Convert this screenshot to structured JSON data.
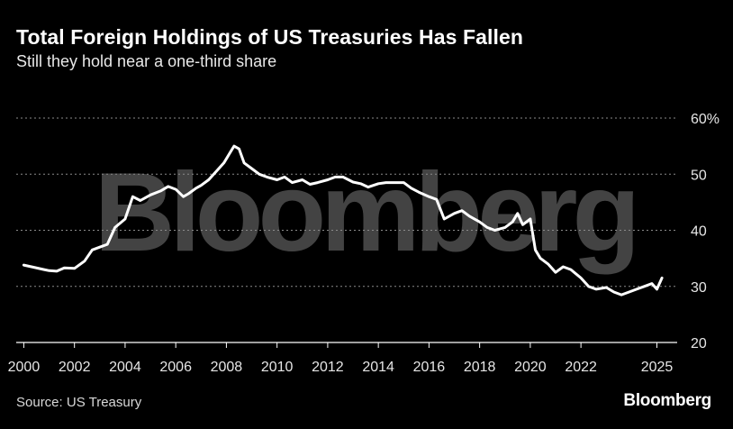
{
  "header": {
    "title": "Total Foreign Holdings of US Treasuries Has Fallen",
    "subtitle": "Still they hold near a one-third share"
  },
  "footer": {
    "source": "Source: US Treasury",
    "brand": "Bloomberg"
  },
  "watermark": "Bloomberg",
  "chart_data": {
    "type": "line",
    "title": "Total Foreign Holdings of US Treasuries Has Fallen",
    "subtitle": "Still they hold near a one-third share",
    "xlabel": "",
    "ylabel": "",
    "xlim": [
      1999.7,
      2025.8
    ],
    "ylim": [
      20,
      60
    ],
    "y_ticks": [
      20,
      30,
      40,
      50,
      60
    ],
    "y_tick_labels": [
      "20",
      "30",
      "40",
      "50",
      "60%"
    ],
    "x_ticks": [
      2000,
      2002,
      2004,
      2006,
      2008,
      2010,
      2012,
      2014,
      2016,
      2018,
      2020,
      2022,
      2025
    ],
    "x_tick_labels": [
      "2000",
      "2002",
      "2004",
      "2006",
      "2008",
      "2010",
      "2012",
      "2014",
      "2016",
      "2018",
      "2020",
      "2022",
      "2025"
    ],
    "grid": true,
    "line_color": "#ffffff",
    "series": [
      {
        "x": [
          2000.0,
          2000.4,
          2000.8,
          2001.0,
          2001.3,
          2001.6,
          2002.0,
          2002.4,
          2002.7,
          2003.0,
          2003.3,
          2003.6,
          2004.0,
          2004.3,
          2004.6,
          2004.8,
          2005.0,
          2005.4,
          2005.7,
          2006.0,
          2006.3,
          2006.5,
          2006.8,
          2007.0,
          2007.3,
          2007.6,
          2007.9,
          2008.1,
          2008.3,
          2008.5,
          2008.7,
          2009.0,
          2009.3,
          2009.6,
          2010.0,
          2010.3,
          2010.6,
          2011.0,
          2011.3,
          2011.6,
          2012.0,
          2012.3,
          2012.6,
          2013.0,
          2013.3,
          2013.6,
          2014.0,
          2014.3,
          2014.6,
          2015.0,
          2015.3,
          2015.6,
          2016.0,
          2016.3,
          2016.6,
          2017.0,
          2017.3,
          2017.6,
          2018.0,
          2018.3,
          2018.6,
          2019.0,
          2019.3,
          2019.5,
          2019.7,
          2020.0,
          2020.2,
          2020.4,
          2020.7,
          2021.0,
          2021.3,
          2021.6,
          2022.0,
          2022.3,
          2022.6,
          2023.0,
          2023.3,
          2023.6,
          2023.9,
          2024.2,
          2024.5,
          2024.8,
          2025.0,
          2025.2
        ],
        "values": [
          33.8,
          33.4,
          33.0,
          32.8,
          32.7,
          33.3,
          33.2,
          34.5,
          36.5,
          37.0,
          37.5,
          40.5,
          42.0,
          46.0,
          45.3,
          45.8,
          46.3,
          47.0,
          47.8,
          47.3,
          46.0,
          46.5,
          47.5,
          48.0,
          49.0,
          50.5,
          52.0,
          53.5,
          55.0,
          54.5,
          52.0,
          51.0,
          50.0,
          49.5,
          49.0,
          49.5,
          48.5,
          49.0,
          48.2,
          48.5,
          49.0,
          49.5,
          49.5,
          48.6,
          48.3,
          47.7,
          48.3,
          48.5,
          48.5,
          48.5,
          47.5,
          46.8,
          46.0,
          45.5,
          42.0,
          43.0,
          43.5,
          42.5,
          41.5,
          40.5,
          40.0,
          40.5,
          41.5,
          43.0,
          41.0,
          42.0,
          36.5,
          35.0,
          34.0,
          32.5,
          33.5,
          33.0,
          31.5,
          30.0,
          29.5,
          29.8,
          29.0,
          28.5,
          29.0,
          29.5,
          30.0,
          30.5,
          29.5,
          31.5
        ]
      }
    ]
  }
}
